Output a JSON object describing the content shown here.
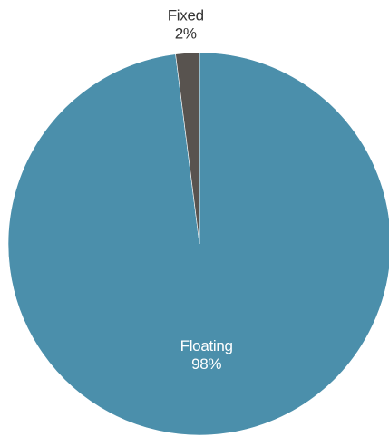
{
  "chart_data": {
    "type": "pie",
    "slices": [
      {
        "label": "Floating",
        "value": 98,
        "value_label": "98%",
        "color": "#4b8fab",
        "label_color": "#ffffff",
        "label_position": "inside"
      },
      {
        "label": "Fixed",
        "value": 2,
        "value_label": "2%",
        "color": "#58534f",
        "label_color": "#333333",
        "label_position": "outside"
      }
    ],
    "start_angle_deg": 0,
    "direction": "clockwise",
    "legend": "none"
  }
}
